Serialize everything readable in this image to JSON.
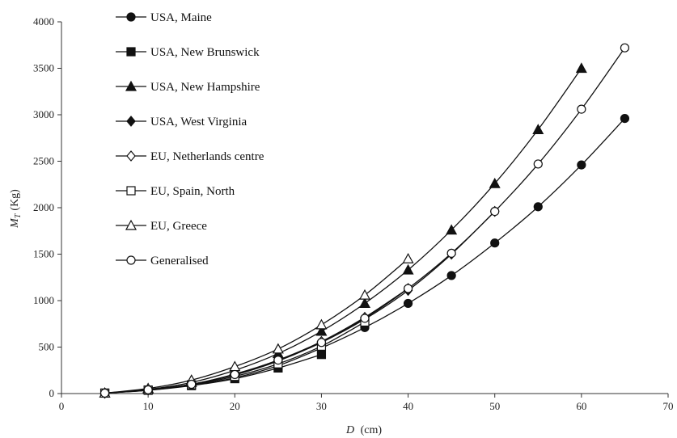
{
  "chart_data": {
    "type": "line",
    "xlabel": "D",
    "xlabel_unit": "(cm)",
    "ylabel": "M",
    "ylabel_sub": "T",
    "ylabel_unit": "(Kg)",
    "xlim": [
      0,
      70
    ],
    "ylim": [
      0,
      4000
    ],
    "xticks": [
      0,
      10,
      20,
      30,
      40,
      50,
      60,
      70
    ],
    "yticks": [
      0,
      500,
      1000,
      1500,
      2000,
      2500,
      3000,
      3500,
      4000
    ],
    "grid": false,
    "legend_position": "top-left",
    "series": [
      {
        "name": "USA, Maine",
        "marker": "circle",
        "filled": true,
        "x": [
          5,
          10,
          15,
          20,
          25,
          30,
          35,
          40,
          45,
          50,
          55,
          60,
          65
        ],
        "y": [
          5,
          35,
          90,
          170,
          300,
          490,
          710,
          970,
          1270,
          1620,
          2010,
          2460,
          2960
        ]
      },
      {
        "name": "USA, New Brunswick",
        "marker": "square",
        "filled": true,
        "x": [
          5,
          10,
          15,
          20,
          25,
          30
        ],
        "y": [
          5,
          35,
          85,
          160,
          275,
          420
        ]
      },
      {
        "name": "USA, New Hampshire",
        "marker": "triangle",
        "filled": true,
        "x": [
          5,
          10,
          15,
          20,
          25,
          30,
          35,
          40,
          45,
          50,
          55,
          60
        ],
        "y": [
          5,
          45,
          120,
          250,
          430,
          670,
          970,
          1330,
          1760,
          2260,
          2840,
          3500
        ]
      },
      {
        "name": "USA, West Virginia",
        "marker": "diamond",
        "filled": true,
        "x": [
          5,
          10,
          15,
          20,
          25,
          30,
          35,
          40,
          45,
          50
        ],
        "y": [
          5,
          40,
          100,
          200,
          350,
          550,
          800,
          1110,
          1500,
          1960
        ]
      },
      {
        "name": "EU, Netherlands centre",
        "marker": "diamond",
        "filled": false,
        "x": [
          5,
          10,
          15,
          20,
          25,
          30,
          35,
          40
        ],
        "y": [
          5,
          40,
          100,
          210,
          360,
          560,
          820,
          1130
        ]
      },
      {
        "name": "EU, Spain, North",
        "marker": "square",
        "filled": false,
        "x": [
          5,
          10,
          15,
          20,
          25,
          30,
          35
        ],
        "y": [
          5,
          38,
          95,
          185,
          320,
          510,
          770
        ]
      },
      {
        "name": "EU, Greece",
        "marker": "triangle",
        "filled": false,
        "x": [
          5,
          10,
          15,
          20,
          25,
          30,
          35,
          40
        ],
        "y": [
          5,
          55,
          145,
          290,
          480,
          740,
          1060,
          1450
        ]
      },
      {
        "name": "Generalised",
        "marker": "circle",
        "filled": false,
        "x": [
          5,
          10,
          15,
          20,
          25,
          30,
          35,
          40,
          45,
          50,
          55,
          60,
          65
        ],
        "y": [
          5,
          40,
          100,
          205,
          360,
          550,
          810,
          1130,
          1510,
          1960,
          2470,
          3060,
          3720
        ]
      }
    ]
  }
}
